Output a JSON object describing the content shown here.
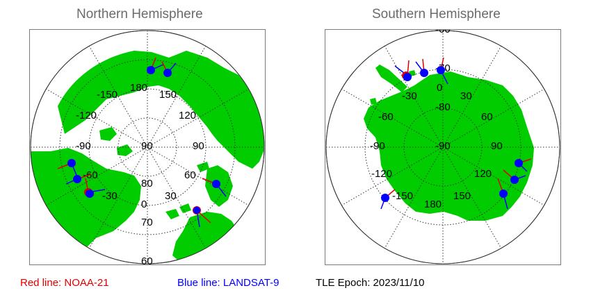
{
  "panels": {
    "north": {
      "title": "Northern Hemisphere",
      "latitude_labels": [
        "90",
        "80",
        "70",
        "60"
      ],
      "longitude_labels": [
        {
          "text": "180",
          "slot": "top"
        },
        {
          "text": "150",
          "slot": "top-right"
        },
        {
          "text": "-150",
          "slot": "top-left"
        },
        {
          "text": "120",
          "slot": "right-upper"
        },
        {
          "text": "-120",
          "slot": "left-upper"
        },
        {
          "text": "90",
          "slot": "right"
        },
        {
          "text": "-90",
          "slot": "left"
        },
        {
          "text": "60",
          "slot": "right-lower"
        },
        {
          "text": "-60",
          "slot": "left-lower"
        },
        {
          "text": "30",
          "slot": "bottom-right"
        },
        {
          "text": "-30",
          "slot": "bottom-left"
        },
        {
          "text": "0",
          "slot": "bottom"
        }
      ],
      "satellite_markers": 8
    },
    "south": {
      "title": "Southern Hemisphere",
      "latitude_labels": [
        "-90",
        "-80",
        "-70",
        "-60"
      ],
      "longitude_labels": [
        {
          "text": "0",
          "slot": "top"
        },
        {
          "text": "30",
          "slot": "top-right"
        },
        {
          "text": "-30",
          "slot": "top-left"
        },
        {
          "text": "60",
          "slot": "right-upper"
        },
        {
          "text": "-60",
          "slot": "left-upper"
        },
        {
          "text": "90",
          "slot": "right"
        },
        {
          "text": "-90",
          "slot": "left"
        },
        {
          "text": "120",
          "slot": "right-lower"
        },
        {
          "text": "-120",
          "slot": "left-lower"
        },
        {
          "text": "150",
          "slot": "bottom-right"
        },
        {
          "text": "-150",
          "slot": "bottom-left"
        },
        {
          "text": "180",
          "slot": "bottom"
        }
      ],
      "satellite_markers": 7
    }
  },
  "legend": {
    "red_label": "Red line: NOAA-21",
    "blue_label": "Blue line: LANDSAT-9",
    "epoch_label": "TLE Epoch: 2023/11/10"
  },
  "colors": {
    "land": "#00cc00",
    "ocean": "#ffffff",
    "grid": "#333333",
    "red_track": "#e00000",
    "blue_track": "#0000ff",
    "title": "#6b6b6b"
  }
}
